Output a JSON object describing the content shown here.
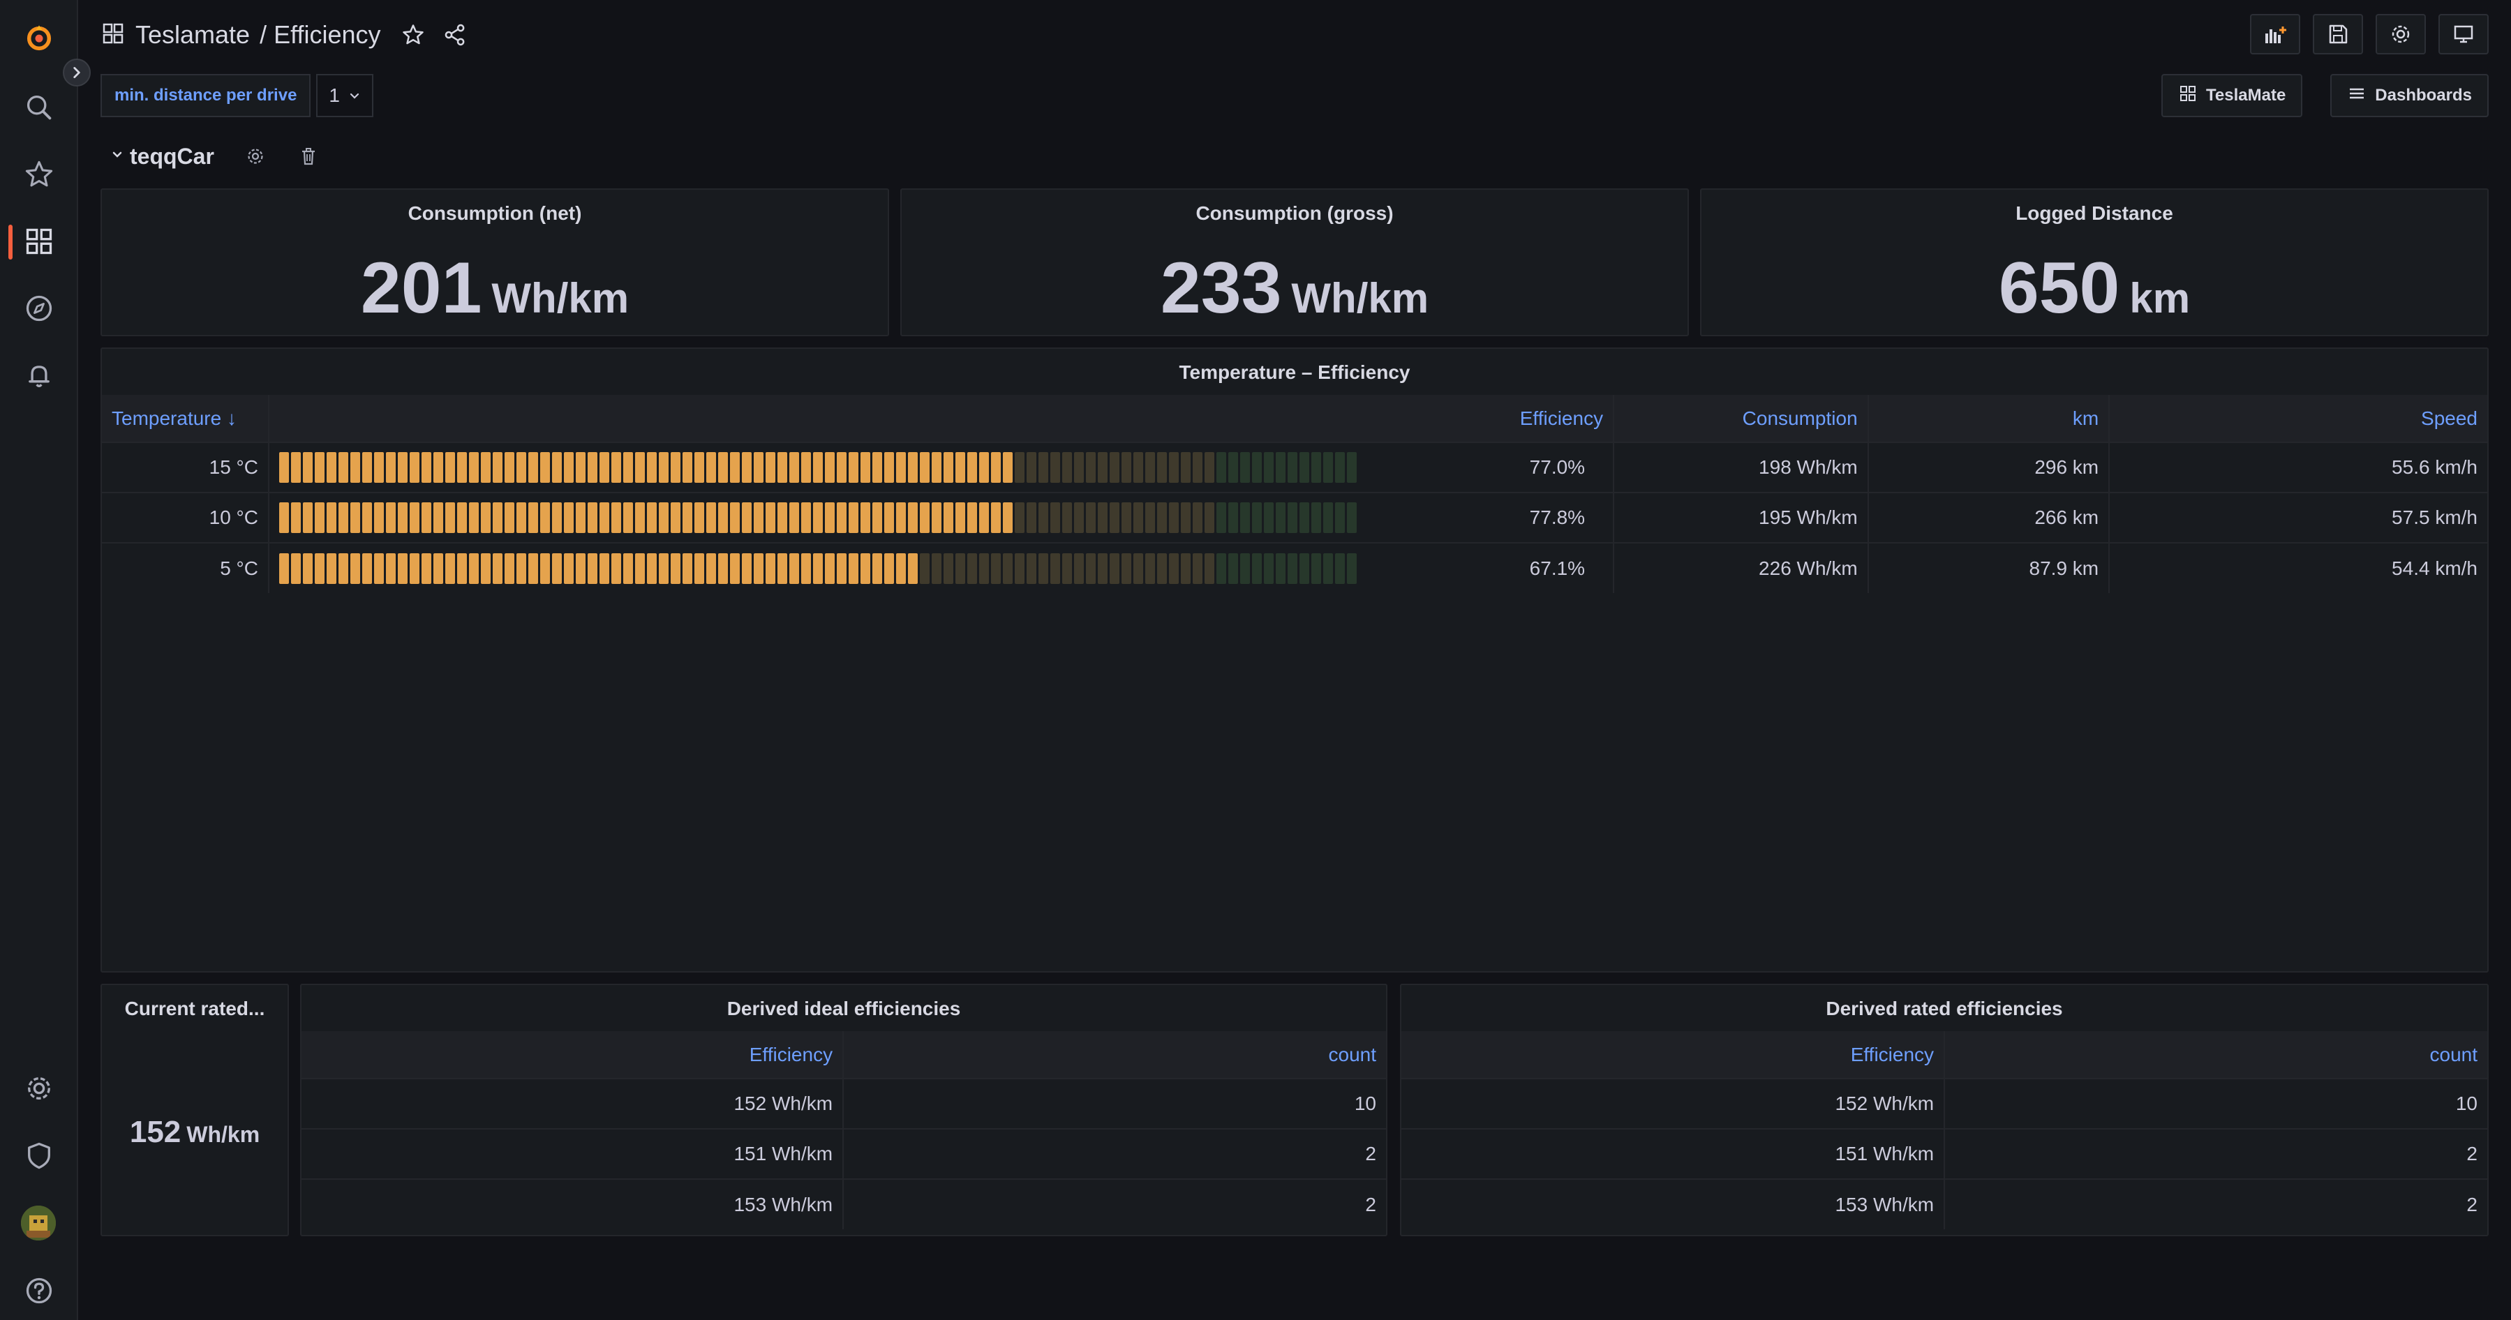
{
  "breadcrumb": {
    "folder": "Teslamate",
    "separator": "/",
    "dashboard": "Efficiency"
  },
  "variable": {
    "label": "min. distance per drive",
    "value": "1"
  },
  "links": {
    "teslamate": "TeslaMate",
    "dashboards": "Dashboards"
  },
  "row": {
    "title": "teqqCar"
  },
  "stats": [
    {
      "title": "Consumption (net)",
      "value": "201",
      "unit": "Wh/km"
    },
    {
      "title": "Consumption (gross)",
      "value": "233",
      "unit": "Wh/km"
    },
    {
      "title": "Logged Distance",
      "value": "650",
      "unit": "km"
    }
  ],
  "temp_table": {
    "title": "Temperature – Efficiency",
    "headers": {
      "temperature": "Temperature ↓",
      "efficiency": "Efficiency",
      "consumption": "Consumption",
      "km": "km",
      "speed": "Speed"
    },
    "rows": [
      {
        "temperature": "15 °C",
        "efficiency": "77.0%",
        "efficiency_fraction": 0.77,
        "consumption": "198 Wh/km",
        "km": "296 km",
        "speed": "55.6 km/h"
      },
      {
        "temperature": "10 °C",
        "efficiency": "77.8%",
        "efficiency_fraction": 0.778,
        "consumption": "195 Wh/km",
        "km": "266 km",
        "speed": "57.5 km/h"
      },
      {
        "temperature": "5 °C",
        "efficiency": "67.1%",
        "efficiency_fraction": 0.671,
        "consumption": "226 Wh/km",
        "km": "87.9 km",
        "speed": "54.4 km/h"
      }
    ]
  },
  "current_rated": {
    "title": "Current rated...",
    "value": "152",
    "unit": "Wh/km"
  },
  "ideal_table": {
    "title": "Derived ideal efficiencies",
    "headers": {
      "efficiency": "Efficiency",
      "count": "count"
    },
    "rows": [
      {
        "efficiency": "152 Wh/km",
        "count": "10"
      },
      {
        "efficiency": "151 Wh/km",
        "count": "2"
      },
      {
        "efficiency": "153 Wh/km",
        "count": "2"
      }
    ]
  },
  "rated_table": {
    "title": "Derived rated efficiencies",
    "headers": {
      "efficiency": "Efficiency",
      "count": "count"
    },
    "rows": [
      {
        "efficiency": "152 Wh/km",
        "count": "10"
      },
      {
        "efficiency": "151 Wh/km",
        "count": "2"
      },
      {
        "efficiency": "153 Wh/km",
        "count": "2"
      }
    ]
  },
  "colors": {
    "accent": "#6e9fff",
    "orange": "#ff9830",
    "gauge_lit": "#e5a34d",
    "gauge_dim_orange": "#3f3a2c",
    "gauge_dim_green": "#27382b"
  }
}
